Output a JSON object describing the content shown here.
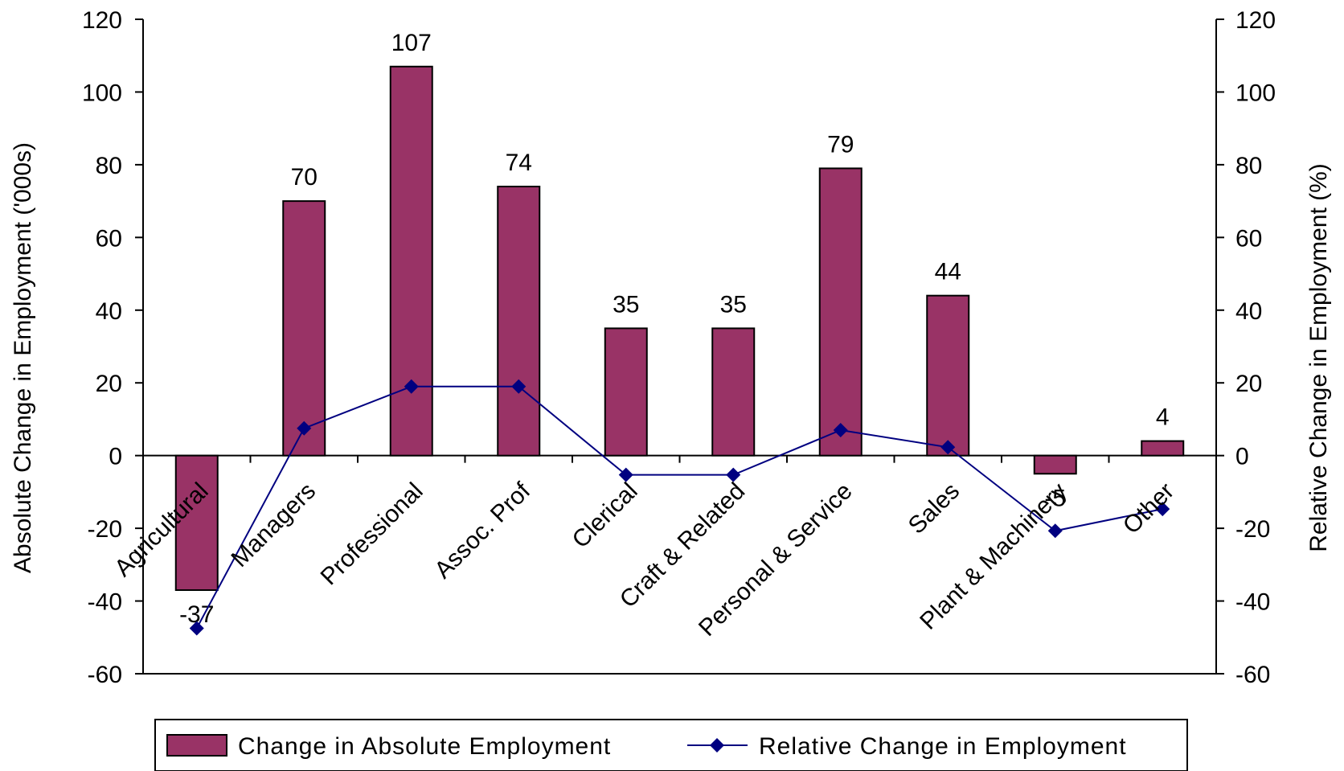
{
  "chart_data": {
    "type": "bar",
    "categories": [
      "Agricultural",
      "Managers",
      "Professional",
      "Assoc. Prof",
      "Clerical",
      "Craft & Related",
      "Personal & Service",
      "Sales",
      "Plant & Machinery",
      "Other"
    ],
    "series": [
      {
        "name": "Change in Absolute Employment",
        "type": "bar",
        "axis": "left",
        "color": "#993366",
        "values": [
          -37,
          70,
          107,
          74,
          35,
          35,
          79,
          44,
          -5,
          4
        ],
        "labels": [
          "-37",
          "70",
          "107",
          "74",
          "35",
          "35",
          "79",
          "44",
          "-5",
          "4"
        ]
      },
      {
        "name": "Relative Change in Employment",
        "type": "line",
        "axis": "right",
        "color": "#000080",
        "marker": "diamond",
        "values": [
          -47.5,
          7.5,
          19,
          19,
          -5.3,
          -5.3,
          7,
          2.3,
          -20.7,
          -14.7
        ]
      }
    ],
    "ylabel": "Absolute Change in Employment ('000s)",
    "y2label": "Relative Change in Employment (%)",
    "ylim": [
      -60,
      120
    ],
    "y2lim": [
      -60,
      120
    ],
    "yticks": [
      "120",
      "100",
      "80",
      "60",
      "40",
      "20",
      "0",
      "-20",
      "-40",
      "-60"
    ],
    "y2ticks": [
      "120",
      "100",
      "80",
      "60",
      "40",
      "20",
      "0",
      "-20",
      "-40",
      "-60"
    ],
    "legend_position": "bottom",
    "grid": false
  }
}
